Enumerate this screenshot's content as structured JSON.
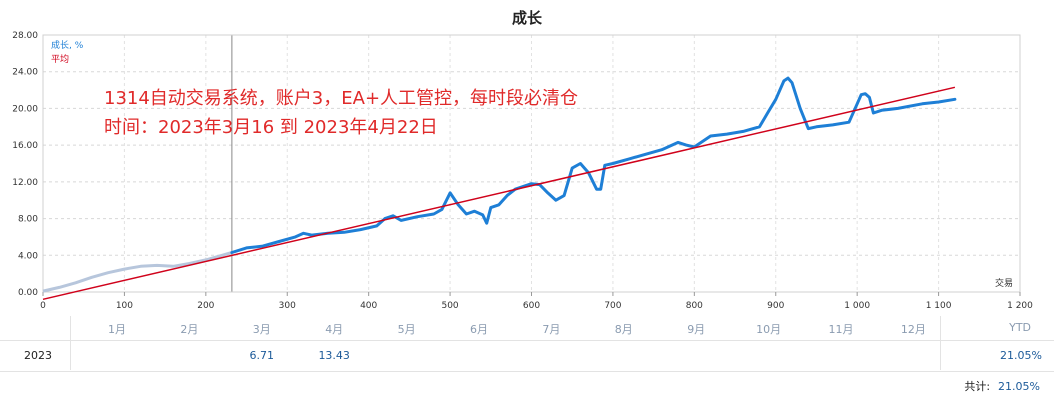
{
  "chart_data": {
    "type": "line",
    "title": "成长",
    "legend": [
      {
        "label": "成长, %",
        "color": "#1e7fd6"
      },
      {
        "label": "平均",
        "color": "#d0021b"
      }
    ],
    "legend_position": "top-left",
    "xlabel": "交易",
    "ylabel": "",
    "xlim": [
      0,
      1200
    ],
    "ylim": [
      0,
      28
    ],
    "x_ticks": [
      0,
      100,
      200,
      300,
      400,
      500,
      600,
      700,
      800,
      900,
      1000,
      1100,
      1200
    ],
    "x_tick_labels": [
      "0",
      "100",
      "200",
      "300",
      "400",
      "500",
      "600",
      "700",
      "800",
      "900",
      "1 000",
      "1 100",
      "1 200"
    ],
    "y_ticks": [
      0,
      4,
      8,
      12,
      16,
      20,
      24,
      28
    ],
    "y_tick_labels": [
      "0.00",
      "4.00",
      "8.00",
      "12.00",
      "16.00",
      "20.00",
      "24.00",
      "28.00"
    ],
    "grid": true,
    "marker_x": 232,
    "annotation_lines": [
      "1314自动交易系统，账户3，EA+人工管控，每时段必清仓",
      "时间：2023年3月16 到 2023年4月22日"
    ],
    "series": [
      {
        "name": "成长, %",
        "segment_before_marker": {
          "x": [
            0,
            20,
            40,
            60,
            80,
            100,
            120,
            140,
            160,
            180,
            200,
            220,
            232
          ],
          "y": [
            0.1,
            0.5,
            1.0,
            1.6,
            2.1,
            2.5,
            2.8,
            2.9,
            2.8,
            3.1,
            3.5,
            4.0,
            4.3
          ]
        },
        "x": [
          232,
          250,
          270,
          290,
          310,
          320,
          330,
          350,
          370,
          390,
          410,
          420,
          430,
          440,
          460,
          480,
          490,
          500,
          510,
          520,
          530,
          540,
          545,
          550,
          560,
          570,
          580,
          600,
          610,
          620,
          630,
          640,
          650,
          660,
          670,
          680,
          685,
          690,
          700,
          720,
          740,
          760,
          780,
          790,
          800,
          820,
          840,
          860,
          880,
          890,
          900,
          910,
          915,
          920,
          930,
          940,
          950,
          970,
          990,
          1000,
          1005,
          1010,
          1015,
          1020,
          1030,
          1050,
          1080,
          1100,
          1120
        ],
        "y": [
          4.3,
          4.8,
          5.0,
          5.5,
          6.0,
          6.4,
          6.2,
          6.4,
          6.5,
          6.8,
          7.2,
          8.0,
          8.3,
          7.8,
          8.2,
          8.5,
          9.0,
          10.8,
          9.5,
          8.5,
          8.8,
          8.4,
          7.5,
          9.2,
          9.5,
          10.5,
          11.2,
          11.8,
          11.7,
          10.8,
          10.0,
          10.5,
          13.5,
          14.0,
          13.0,
          11.2,
          11.2,
          13.8,
          14.0,
          14.5,
          15.0,
          15.5,
          16.3,
          16.0,
          15.8,
          17.0,
          17.2,
          17.5,
          18.0,
          19.5,
          21.0,
          23.0,
          23.3,
          22.8,
          20.0,
          17.8,
          18.0,
          18.2,
          18.5,
          20.5,
          21.5,
          21.6,
          21.2,
          19.5,
          19.8,
          20.0,
          20.5,
          20.7,
          21.0
        ]
      },
      {
        "name": "平均",
        "x": [
          0,
          1120
        ],
        "y": [
          -0.8,
          22.3
        ]
      }
    ]
  },
  "table": {
    "months": [
      "1月",
      "2月",
      "3月",
      "4月",
      "5月",
      "6月",
      "7月",
      "8月",
      "9月",
      "10月",
      "11月",
      "12月"
    ],
    "ytd_header": "YTD",
    "year": "2023",
    "monthly_values": [
      "",
      "",
      "6.71",
      "13.43",
      "",
      "",
      "",
      "",
      "",
      "",
      "",
      ""
    ],
    "ytd_value": "21.05%",
    "total_label": "共计:",
    "total_value": "21.05%"
  }
}
